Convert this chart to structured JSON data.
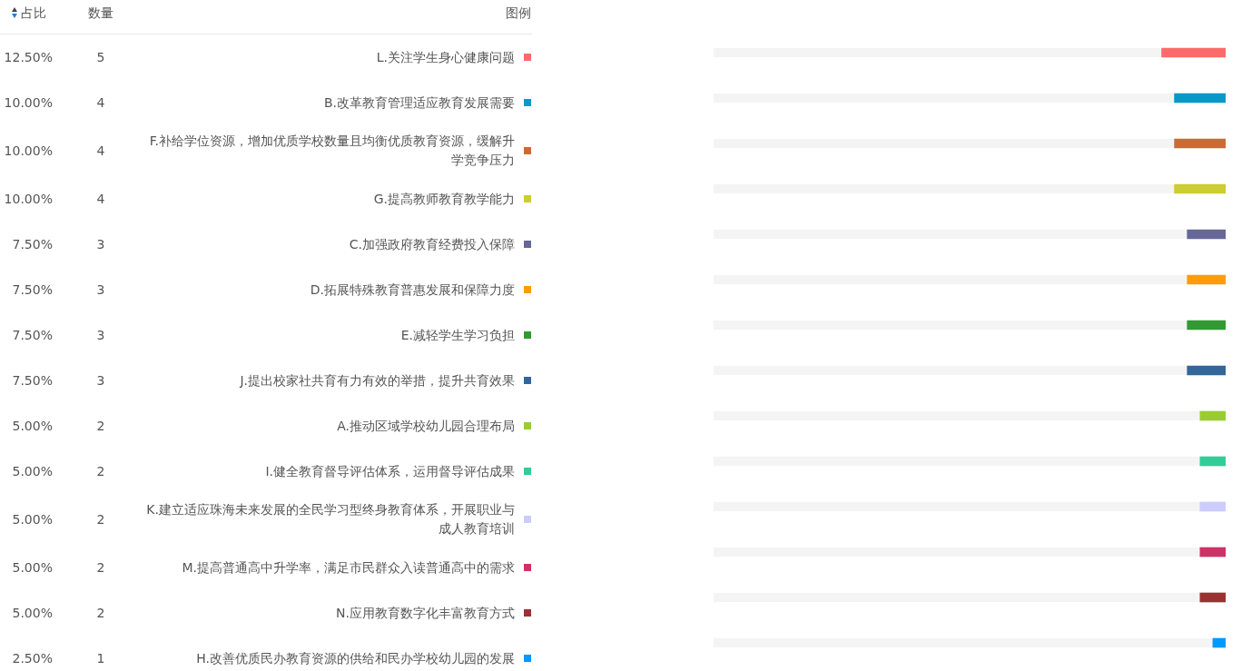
{
  "chart_data": {
    "type": "bar",
    "orientation": "horizontal",
    "categories": [
      "L.关注学生身心健康问题",
      "B.改革教育管理适应教育发展需要",
      "F.补给学位资源，增加优质学校数量且均衡优质教育资源，缓解升学竞争压力",
      "G.提高教师教育教学能力",
      "C.加强政府教育经费投入保障",
      "D.拓展特殊教育普惠发展和保障力度",
      "E.减轻学生学习负担",
      "J.提出校家社共育有力有效的举措，提升共育效果",
      "A.推动区域学校幼儿园合理布局",
      "I.健全教育督导评估体系，运用督导评估成果",
      "K.建立适应珠海未来发展的全民学习型终身教育体系，开展职业与成人教育培训",
      "M.提高普通高中升学率，满足市民群众入读普通高中的需求",
      "N.应用教育数字化丰富教育方式",
      "H.改善优质民办教育资源的供给和民办学校幼儿园的发展"
    ],
    "values": [
      12.5,
      10,
      10,
      10,
      7.5,
      7.5,
      7.5,
      7.5,
      5,
      5,
      5,
      5,
      5,
      2.5
    ],
    "colors": [
      "#fb6b6b",
      "#0899c7",
      "#cd6936",
      "#cccc33",
      "#666699",
      "#ff9c07",
      "#339933",
      "#336699",
      "#99cc33",
      "#33cc99",
      "#ccccff",
      "#cc3366",
      "#993333",
      "#0099ff"
    ],
    "value_labels": [
      "12.50%",
      "10.00%",
      "10.00%",
      "10.00%",
      "7.50%",
      "7.50%",
      "7.50%",
      "7.50%",
      "5.00%",
      "5.00%",
      "5.00%",
      "5.00%",
      "5.00%",
      "2.50%"
    ],
    "grid": "y",
    "tick_labels": "y",
    "annotations": [
      "占比",
      "数量",
      "图例",
      "5",
      "4",
      "4",
      "4",
      "3",
      "3",
      "3",
      "3",
      "2",
      "2",
      "2",
      "2",
      "2",
      "1"
    ]
  }
}
